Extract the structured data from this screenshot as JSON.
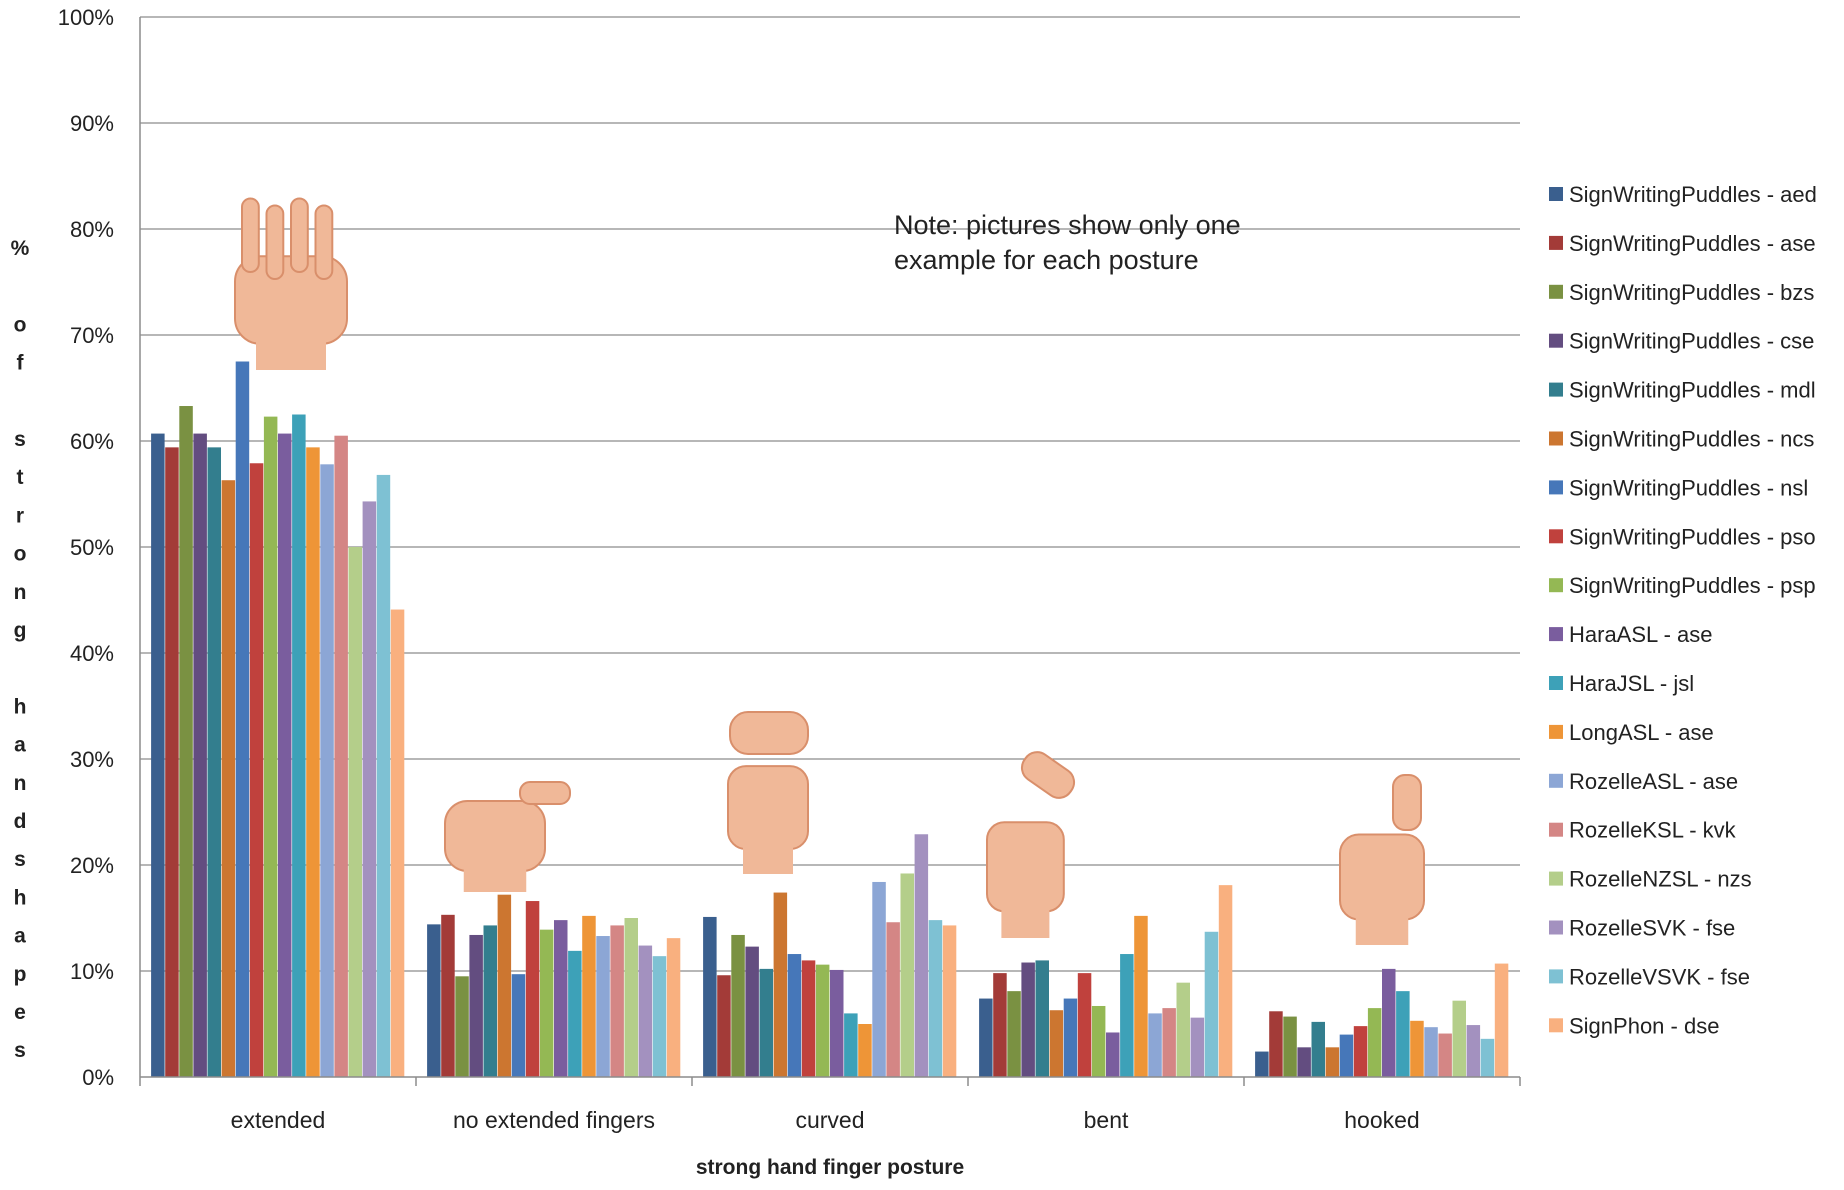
{
  "chart_data": {
    "type": "bar",
    "xlabel": "strong hand finger posture",
    "ylabel": "% of strong handshapes",
    "ylim": [
      0,
      100
    ],
    "y_ticks": [
      "0%",
      "10%",
      "20%",
      "30%",
      "40%",
      "50%",
      "60%",
      "70%",
      "80%",
      "90%",
      "100%"
    ],
    "grid": true,
    "legend_position": "right",
    "annotation": "Note: pictures show only one example for each posture",
    "annotation_lines": [
      "Note: pictures show only one",
      "example for each posture"
    ],
    "categories": [
      "extended",
      "no extended fingers",
      "curved",
      "bent",
      "hooked"
    ],
    "series": [
      {
        "name": "SignWritingPuddles - aed",
        "color": "#3A5F8E",
        "values": [
          60.7,
          14.4,
          15.1,
          7.4,
          2.4
        ]
      },
      {
        "name": "SignWritingPuddles - ase",
        "color": "#A33B38",
        "values": [
          59.4,
          15.3,
          9.6,
          9.8,
          6.2
        ]
      },
      {
        "name": "SignWritingPuddles - bzs",
        "color": "#7A9142",
        "values": [
          63.3,
          9.5,
          13.4,
          8.1,
          5.7
        ]
      },
      {
        "name": "SignWritingPuddles - cse",
        "color": "#634D80",
        "values": [
          60.7,
          13.4,
          12.3,
          10.8,
          2.8
        ]
      },
      {
        "name": "SignWritingPuddles - mdl",
        "color": "#337E8E",
        "values": [
          59.4,
          14.3,
          10.2,
          11.0,
          5.2
        ]
      },
      {
        "name": "SignWritingPuddles - ncs",
        "color": "#CC7630",
        "values": [
          56.3,
          17.2,
          17.4,
          6.3,
          2.8
        ]
      },
      {
        "name": "SignWritingPuddles - nsl",
        "color": "#4677B9",
        "values": [
          67.5,
          9.7,
          11.6,
          7.4,
          4.0
        ]
      },
      {
        "name": "SignWritingPuddles - pso",
        "color": "#C0413D",
        "values": [
          57.9,
          16.6,
          11.0,
          9.8,
          4.8
        ]
      },
      {
        "name": "SignWritingPuddles - psp",
        "color": "#94B854",
        "values": [
          62.3,
          13.9,
          10.6,
          6.7,
          6.5
        ]
      },
      {
        "name": "HaraASL - ase",
        "color": "#7A5D9E",
        "values": [
          60.7,
          14.8,
          10.1,
          4.2,
          10.2
        ]
      },
      {
        "name": "HaraJSL - jsl",
        "color": "#3DA1B8",
        "values": [
          62.5,
          11.9,
          6.0,
          11.6,
          8.1
        ]
      },
      {
        "name": "LongASL - ase",
        "color": "#EE9537",
        "values": [
          59.4,
          15.2,
          5.0,
          15.2,
          5.3
        ]
      },
      {
        "name": "RozelleASL - ase",
        "color": "#8CA6D5",
        "values": [
          57.8,
          13.3,
          18.4,
          6.0,
          4.7
        ]
      },
      {
        "name": "RozelleKSL - kvk",
        "color": "#D48685",
        "values": [
          60.5,
          14.3,
          14.6,
          6.5,
          4.1
        ]
      },
      {
        "name": "RozelleNZSL - nzs",
        "color": "#B4CE8A",
        "values": [
          50.0,
          15.0,
          19.2,
          8.9,
          7.2
        ]
      },
      {
        "name": "RozelleSVK - fse",
        "color": "#A391BF",
        "values": [
          54.3,
          12.4,
          22.9,
          5.6,
          4.9
        ]
      },
      {
        "name": "RozelleVSVK - fse",
        "color": "#7EC1D3",
        "values": [
          56.8,
          11.4,
          14.8,
          13.7,
          3.6
        ]
      },
      {
        "name": "SignPhon - dse",
        "color": "#F9B07F",
        "values": [
          44.1,
          13.1,
          14.3,
          18.1,
          10.7
        ]
      }
    ]
  }
}
